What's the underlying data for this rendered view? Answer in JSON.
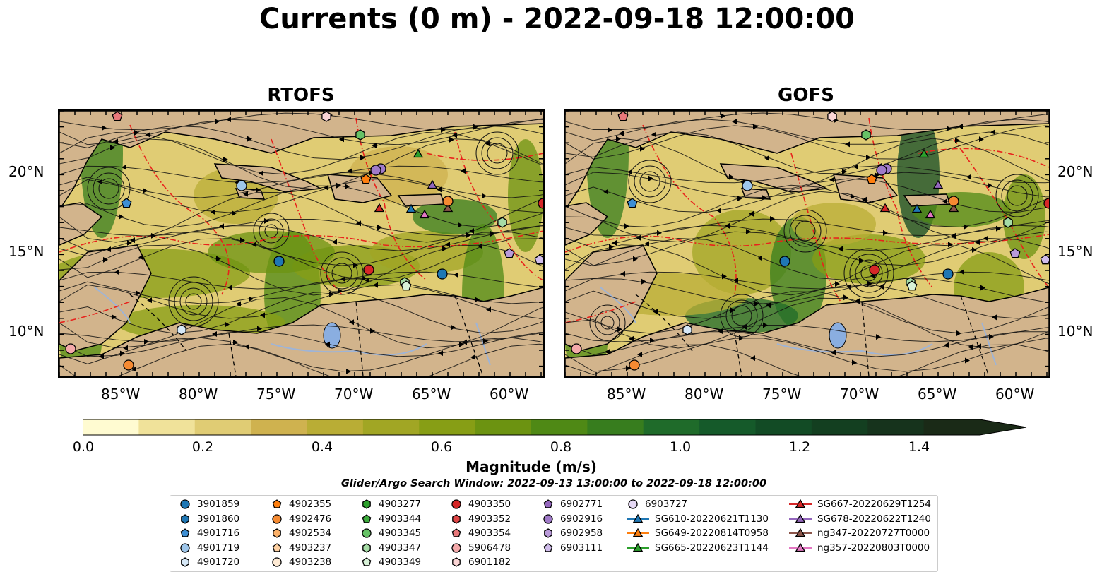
{
  "title": "Currents (0 m) - 2022-09-18 12:00:00",
  "panels": [
    {
      "title": "RTOFS"
    },
    {
      "title": "GOFS"
    }
  ],
  "axes": {
    "lon_labels": [
      "85°W",
      "80°W",
      "75°W",
      "70°W",
      "65°W",
      "60°W"
    ],
    "lat_labels": [
      "20°N",
      "15°N",
      "10°N"
    ]
  },
  "colorbar": {
    "label": "Magnitude (m/s)",
    "ticks": [
      "0.0",
      "0.2",
      "0.4",
      "0.6",
      "0.8",
      "1.0",
      "1.2",
      "1.4"
    ],
    "colors": [
      "#fffbd1",
      "#f0e29a",
      "#e0cc74",
      "#cfb24f",
      "#b9ad35",
      "#a1a624",
      "#879e15",
      "#6c9311",
      "#4f8915",
      "#377d1e",
      "#1f6b2a",
      "#155a2a",
      "#124b25",
      "#133f20",
      "#16331c",
      "#1a2a17"
    ]
  },
  "search_window": "Glider/Argo Search Window: 2022-09-13 13:00:00 to 2022-09-18 12:00:00",
  "legend": [
    [
      {
        "label": "3901859",
        "marker": "circle",
        "color": "#1f77b4"
      },
      {
        "label": "3901860",
        "marker": "hexagon",
        "color": "#1f77b4"
      },
      {
        "label": "4901716",
        "marker": "pentagon",
        "color": "#3d8ed3"
      },
      {
        "label": "4901719",
        "marker": "circle",
        "color": "#9ec6ea"
      },
      {
        "label": "4901720",
        "marker": "hexagon",
        "color": "#d6e8f7"
      }
    ],
    [
      {
        "label": "4902355",
        "marker": "pentagon",
        "color": "#ff7f0e"
      },
      {
        "label": "4902476",
        "marker": "circle",
        "color": "#f58a32"
      },
      {
        "label": "4902534",
        "marker": "hexagon",
        "color": "#fbb068"
      },
      {
        "label": "4903237",
        "marker": "pentagon",
        "color": "#fdd0a2"
      },
      {
        "label": "4903238",
        "marker": "circle",
        "color": "#feead4"
      }
    ],
    [
      {
        "label": "4903277",
        "marker": "hexagon",
        "color": "#2ca02c"
      },
      {
        "label": "4903344",
        "marker": "pentagon",
        "color": "#3caa3c"
      },
      {
        "label": "4903345",
        "marker": "circle",
        "color": "#66c266"
      },
      {
        "label": "4903347",
        "marker": "hexagon",
        "color": "#a6dca6"
      },
      {
        "label": "4903349",
        "marker": "pentagon",
        "color": "#d8f2d8"
      }
    ],
    [
      {
        "label": "4903350",
        "marker": "circle",
        "color": "#d62728"
      },
      {
        "label": "4903352",
        "marker": "hexagon",
        "color": "#dd4546"
      },
      {
        "label": "4903354",
        "marker": "pentagon",
        "color": "#e8787a"
      },
      {
        "label": "5906478",
        "marker": "circle",
        "color": "#f4a9aa"
      },
      {
        "label": "6901182",
        "marker": "hexagon",
        "color": "#fbd5d5"
      }
    ],
    [
      {
        "label": "6902771",
        "marker": "pentagon",
        "color": "#9467bd"
      },
      {
        "label": "6902916",
        "marker": "circle",
        "color": "#a07ac8"
      },
      {
        "label": "6902958",
        "marker": "hexagon",
        "color": "#b99ad9"
      },
      {
        "label": "6903111",
        "marker": "pentagon",
        "color": "#d0bceb"
      }
    ],
    [
      {
        "label": "6903727",
        "marker": "circle",
        "color": "#e6d9f5"
      },
      {
        "label": "SG610-20220621T1130",
        "marker": "triangle-line",
        "color": "#1f77b4"
      },
      {
        "label": "SG649-20220814T0958",
        "marker": "triangle-line",
        "color": "#ff7f0e"
      },
      {
        "label": "SG665-20220623T1144",
        "marker": "triangle-line",
        "color": "#2ca02c"
      }
    ],
    [
      {
        "label": "SG667-20220629T1254",
        "marker": "triangle-line",
        "color": "#d62728"
      },
      {
        "label": "SG678-20220622T1240",
        "marker": "triangle-line",
        "color": "#9467bd"
      },
      {
        "label": "ng347-20220727T0000",
        "marker": "triangle-line",
        "color": "#8c564b"
      },
      {
        "label": "ng357-20220803T0000",
        "marker": "triangle-line",
        "color": "#e377c2"
      }
    ]
  ]
}
